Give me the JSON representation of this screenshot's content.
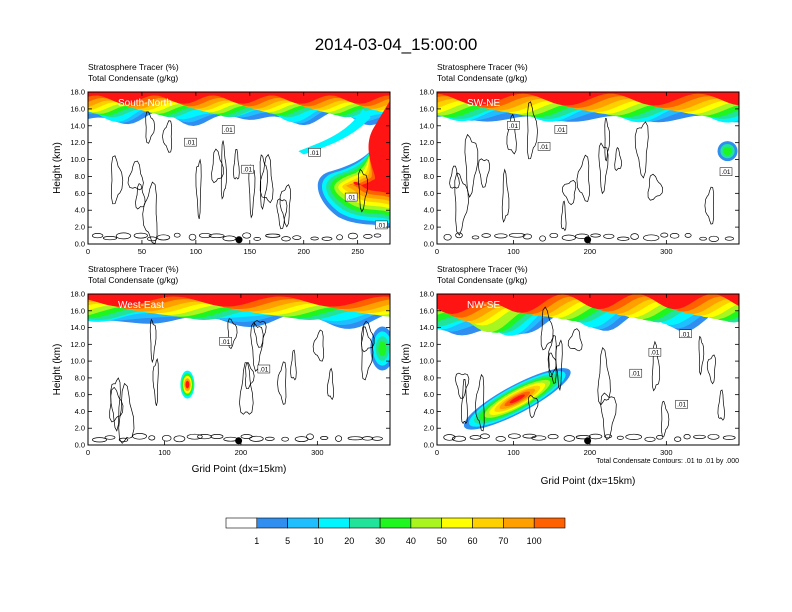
{
  "page": {
    "title": "2014-03-04_15:00:00",
    "contour_note": "Total Condensate Contours: .01 to .01 by .000"
  },
  "colorbar": {
    "colors": [
      "#ffffff",
      "#2f8ef0",
      "#1fbfff",
      "#00f5ff",
      "#22e39a",
      "#1ff51f",
      "#a8f51f",
      "#ffff00",
      "#ffd000",
      "#ffa000",
      "#ff6000",
      "#ff1414"
    ],
    "labels": [
      "1",
      "5",
      "10",
      "20",
      "30",
      "40",
      "50",
      "60",
      "70",
      "100"
    ]
  },
  "chart_data": [
    {
      "type": "contour",
      "panel_label": "South-North",
      "header": [
        "Stratosphere Tracer   (%)",
        "Total Condensate   (g/kg)"
      ],
      "xlabel": "",
      "ylabel": "Height (km)",
      "xlim": [
        0,
        280
      ],
      "ylim": [
        0,
        18
      ],
      "x_ticks": [
        0,
        50,
        100,
        150,
        200,
        250
      ],
      "y_ticks": [
        "0.0",
        "2.0",
        "4.0",
        "6.0",
        "8.0",
        "10.0",
        "12.0",
        "14.0",
        "16.0",
        "18.0"
      ],
      "contour_labels": [
        {
          "text": ".01",
          "x": 95,
          "y": 12.0
        },
        {
          "text": ".01",
          "x": 130,
          "y": 13.5
        },
        {
          "text": ".01",
          "x": 210,
          "y": 10.8
        },
        {
          "text": ".01",
          "x": 148,
          "y": 8.8
        },
        {
          "text": ".01",
          "x": 244,
          "y": 5.5
        },
        {
          "text": ".01",
          "x": 272,
          "y": 2.2
        }
      ],
      "marker_x": 140
    },
    {
      "type": "contour",
      "panel_label": "SW-NE",
      "header": [
        "Stratosphere Tracer   (%)",
        "Total Condensate   (g/kg)"
      ],
      "xlabel": "",
      "ylabel": "Height (km)",
      "xlim": [
        0,
        395
      ],
      "ylim": [
        0,
        18
      ],
      "x_ticks": [
        0,
        100,
        200,
        300
      ],
      "y_ticks": [
        "0.0",
        "2.0",
        "4.0",
        "6.0",
        "8.0",
        "10.0",
        "12.0",
        "14.0",
        "16.0",
        "18.0"
      ],
      "contour_labels": [
        {
          "text": ".01",
          "x": 140,
          "y": 11.5
        },
        {
          "text": ".01",
          "x": 162,
          "y": 13.5
        },
        {
          "text": ".01",
          "x": 100,
          "y": 14.0
        },
        {
          "text": ".01",
          "x": 378,
          "y": 8.5
        }
      ],
      "marker_x": 197
    },
    {
      "type": "contour",
      "panel_label": "West-East",
      "header": [
        "Stratosphere Tracer   (%)",
        "Total Condensate   (g/kg)"
      ],
      "xlabel": "Grid Point  (dx=15km)",
      "ylabel": "Height (km)",
      "xlim": [
        0,
        395
      ],
      "ylim": [
        0,
        18
      ],
      "x_ticks": [
        0,
        100,
        200,
        300
      ],
      "y_ticks": [
        "0.0",
        "2.0",
        "4.0",
        "6.0",
        "8.0",
        "10.0",
        "12.0",
        "14.0",
        "16.0",
        "18.0"
      ],
      "contour_labels": [
        {
          "text": ".01",
          "x": 180,
          "y": 12.3
        },
        {
          "text": ".01",
          "x": 230,
          "y": 9.0
        }
      ],
      "marker_x": 197
    },
    {
      "type": "contour",
      "panel_label": "NW-SE",
      "header": [
        "Stratosphere Tracer   (%)",
        "Total Condensate   (g/kg)"
      ],
      "xlabel": "Grid Point  (dx=15km)",
      "ylabel": "Height (km)",
      "xlim": [
        0,
        395
      ],
      "ylim": [
        0,
        18
      ],
      "x_ticks": [
        0,
        100,
        200,
        300
      ],
      "y_ticks": [
        "0.0",
        "2.0",
        "4.0",
        "6.0",
        "8.0",
        "10.0",
        "12.0",
        "14.0",
        "16.0",
        "18.0"
      ],
      "contour_labels": [
        {
          "text": ".01",
          "x": 325,
          "y": 13.2
        },
        {
          "text": ".01",
          "x": 285,
          "y": 11.0
        },
        {
          "text": ".01",
          "x": 260,
          "y": 8.5
        },
        {
          "text": ".01",
          "x": 320,
          "y": 4.8
        }
      ],
      "marker_x": 197
    }
  ]
}
